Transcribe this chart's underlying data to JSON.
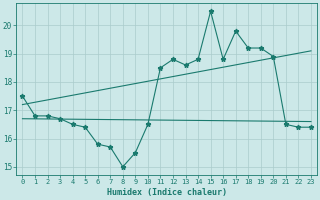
{
  "xlabel": "Humidex (Indice chaleur)",
  "background_color": "#cce8e8",
  "grid_color": "#aacccc",
  "line_color": "#1a7a6e",
  "xlim": [
    -0.5,
    23.5
  ],
  "ylim": [
    14.7,
    20.8
  ],
  "yticks": [
    15,
    16,
    17,
    18,
    19,
    20
  ],
  "xticks": [
    0,
    1,
    2,
    3,
    4,
    5,
    6,
    7,
    8,
    9,
    10,
    11,
    12,
    13,
    14,
    15,
    16,
    17,
    18,
    19,
    20,
    21,
    22,
    23
  ],
  "series1_x": [
    0,
    1,
    2,
    3,
    4,
    5,
    6,
    7,
    8,
    9,
    10,
    11,
    12,
    13,
    14,
    15,
    16,
    17,
    18,
    19,
    20,
    21,
    22,
    23
  ],
  "series1_y": [
    17.5,
    16.8,
    16.8,
    16.7,
    16.5,
    16.4,
    15.8,
    15.7,
    15.0,
    15.5,
    16.5,
    18.5,
    18.8,
    18.6,
    18.8,
    20.5,
    18.8,
    19.8,
    19.2,
    19.2,
    18.9,
    16.5,
    16.4,
    16.4
  ],
  "series2_x": [
    0,
    23
  ],
  "series2_y": [
    16.7,
    16.6
  ],
  "series3_x": [
    0,
    23
  ],
  "series3_y": [
    17.2,
    19.1
  ]
}
